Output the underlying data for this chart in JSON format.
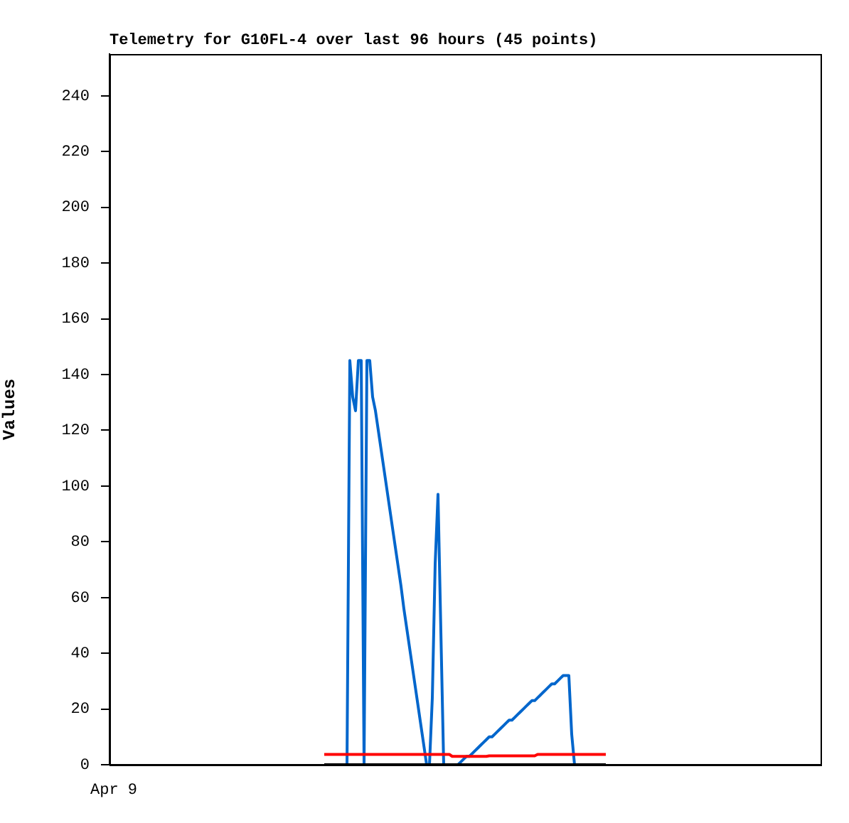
{
  "chart_data": {
    "type": "line",
    "title": "Telemetry for G10FL-4 over last 96 hours (45 points)",
    "ylabel": "Values",
    "annotations": [
      "Apr 9"
    ],
    "ylim": [
      0,
      255
    ],
    "yticks": [
      0,
      20,
      40,
      60,
      80,
      100,
      120,
      140,
      160,
      180,
      200,
      220,
      240
    ],
    "grid": false,
    "legend": false,
    "marker": "none",
    "line_style": "solid",
    "categories": [
      null,
      null,
      null,
      null,
      null,
      null,
      null,
      null,
      null,
      null,
      null,
      null,
      null,
      null,
      null,
      null,
      null,
      null,
      null,
      null,
      null,
      null,
      null,
      null,
      null,
      null,
      null,
      null,
      null,
      null,
      null,
      null,
      null,
      null,
      null,
      null,
      null,
      null,
      null,
      null,
      null,
      null,
      null,
      null,
      null,
      null,
      null,
      null,
      null,
      null,
      null,
      null,
      null,
      null,
      null,
      null,
      null,
      null,
      null,
      null,
      null,
      null,
      null,
      null,
      null,
      null,
      null,
      null,
      null,
      null,
      null,
      null,
      null,
      null,
      null,
      null,
      null,
      null,
      null,
      null,
      null,
      null,
      null,
      null,
      null,
      null,
      null,
      null,
      null,
      null,
      null,
      null,
      null,
      null,
      null,
      null,
      null,
      null,
      null,
      null,
      null,
      null,
      null,
      null,
      null,
      null,
      null,
      null,
      null,
      null,
      null,
      null,
      null,
      null,
      null,
      null,
      null,
      null,
      null,
      null,
      null,
      null,
      null,
      null,
      null,
      null,
      null,
      null,
      null,
      null,
      null,
      null,
      null,
      null,
      null,
      null,
      null,
      null,
      null,
      null,
      null,
      null,
      null,
      null,
      null,
      null,
      null,
      null,
      null,
      null,
      null,
      null,
      null,
      null,
      null,
      null,
      null,
      null,
      null,
      null,
      null,
      null,
      null,
      null,
      null,
      null,
      null,
      null,
      null,
      null,
      null,
      null,
      null,
      null,
      null,
      null,
      null,
      null,
      null,
      null,
      null,
      null,
      null,
      null,
      null,
      null,
      null,
      null,
      null,
      null,
      null,
      null,
      null,
      null,
      null,
      null,
      null,
      null,
      null,
      null,
      null,
      null,
      null,
      null,
      null,
      null,
      null,
      null,
      null,
      null,
      null,
      null,
      null,
      null,
      null,
      null,
      null,
      null,
      null,
      null,
      null,
      null,
      null,
      null,
      null,
      null,
      null,
      null,
      null,
      null,
      null,
      null,
      null,
      null,
      null,
      null,
      null,
      null,
      null,
      null,
      null,
      null,
      null,
      null,
      null,
      null,
      null,
      null,
      null,
      null
    ],
    "series": [
      {
        "color": "#000000",
        "values": [
          null,
          null,
          null,
          null,
          null,
          null,
          null,
          null,
          null,
          null,
          null,
          null,
          null,
          null,
          null,
          null,
          null,
          null,
          null,
          null,
          null,
          null,
          null,
          null,
          null,
          null,
          null,
          null,
          null,
          null,
          null,
          null,
          null,
          null,
          null,
          null,
          null,
          null,
          null,
          null,
          null,
          null,
          null,
          null,
          null,
          null,
          null,
          null,
          null,
          null,
          null,
          null,
          null,
          null,
          null,
          null,
          null,
          null,
          null,
          null,
          null,
          null,
          null,
          null,
          null,
          null,
          null,
          null,
          null,
          null,
          null,
          null,
          null,
          null,
          null,
          0,
          0,
          0,
          0,
          0,
          0,
          0,
          0,
          0,
          0,
          0,
          0,
          0,
          0,
          0,
          0,
          0,
          0,
          0,
          0,
          0,
          0,
          0,
          0,
          0,
          0,
          0,
          0,
          0,
          0,
          0,
          0,
          0,
          0,
          0,
          0,
          0,
          0,
          0,
          0,
          0,
          0,
          0,
          0,
          0,
          0,
          0,
          0,
          0,
          0,
          0,
          0,
          0,
          0,
          0,
          0,
          0,
          0,
          0,
          0,
          0,
          0,
          0,
          0,
          0,
          0,
          0,
          0,
          0,
          0,
          0,
          0,
          0,
          0,
          0,
          0,
          0,
          0,
          0,
          0,
          0,
          0,
          0,
          0,
          0,
          0,
          0,
          0,
          0,
          0,
          0,
          0,
          0,
          0,
          0,
          0,
          0,
          0,
          0,
          0,
          null,
          null,
          null,
          null,
          null,
          null,
          null,
          null,
          null,
          null,
          null,
          null,
          null,
          null,
          null,
          null,
          null,
          null,
          null,
          null,
          null,
          null,
          null,
          null,
          null,
          null,
          null,
          null,
          null,
          null,
          null,
          null,
          null,
          null,
          null,
          null,
          null,
          null,
          null,
          null,
          null,
          null,
          null,
          null,
          null,
          null,
          null,
          null,
          null,
          null,
          null,
          null,
          null,
          null,
          null,
          null,
          null,
          null,
          null,
          null,
          null,
          null,
          null,
          null,
          null,
          null,
          null,
          null,
          null,
          null,
          null,
          null,
          null,
          null,
          null
        ]
      },
      {
        "color": "#ff0000",
        "values": [
          null,
          null,
          null,
          null,
          null,
          null,
          null,
          null,
          null,
          null,
          null,
          null,
          null,
          null,
          null,
          null,
          null,
          null,
          null,
          null,
          null,
          null,
          null,
          null,
          null,
          null,
          null,
          null,
          null,
          null,
          null,
          null,
          null,
          null,
          null,
          null,
          null,
          null,
          null,
          null,
          null,
          null,
          null,
          null,
          null,
          null,
          null,
          null,
          null,
          null,
          null,
          null,
          null,
          null,
          null,
          null,
          null,
          null,
          null,
          null,
          null,
          null,
          null,
          null,
          null,
          null,
          null,
          null,
          null,
          null,
          null,
          null,
          null,
          null,
          null,
          3.7,
          3.7,
          3.7,
          3.7,
          3.7,
          3.7,
          3.7,
          3.7,
          3.7,
          3.7,
          3.7,
          3.7,
          3.7,
          3.7,
          3.7,
          3.7,
          3.7,
          3.7,
          3.7,
          3.7,
          3.7,
          3.7,
          3.7,
          3.7,
          3.7,
          3.7,
          3.7,
          3.7,
          3.7,
          3.7,
          3.7,
          3.7,
          3.7,
          3.7,
          3.7,
          3.7,
          3.7,
          3.7,
          3.7,
          3.7,
          3.7,
          3.7,
          3.7,
          3.7,
          3.7,
          3,
          3,
          3,
          3,
          3,
          3,
          3,
          3,
          3,
          3,
          3,
          3,
          3,
          3.2,
          3.2,
          3.2,
          3.2,
          3.2,
          3.2,
          3.2,
          3.2,
          3.2,
          3.2,
          3.2,
          3.2,
          3.2,
          3.2,
          3.2,
          3.2,
          3.2,
          3.7,
          3.7,
          3.7,
          3.7,
          3.7,
          3.7,
          3.7,
          3.7,
          3.7,
          3.7,
          3.7,
          3.7,
          3.7,
          3.7,
          3.7,
          3.7,
          3.7,
          3.7,
          3.7,
          3.7,
          3.7,
          3.7,
          3.7,
          3.7,
          3.7,
          null,
          null,
          null,
          null,
          null,
          null,
          null,
          null,
          null,
          null,
          null,
          null,
          null,
          null,
          null,
          null,
          null,
          null,
          null,
          null,
          null,
          null,
          null,
          null,
          null,
          null,
          null,
          null,
          null,
          null,
          null,
          null,
          null,
          null,
          null,
          null,
          null,
          null,
          null,
          null,
          null,
          null,
          null,
          null,
          null,
          null,
          null,
          null,
          null,
          null,
          null,
          null,
          null,
          null,
          null,
          null,
          null,
          null,
          null,
          null,
          null,
          null,
          null,
          null,
          null,
          null,
          null,
          null,
          null,
          null,
          null,
          null,
          null,
          null,
          null
        ]
      },
      {
        "color": "#0066cc",
        "values": [
          null,
          null,
          null,
          null,
          null,
          null,
          null,
          null,
          null,
          null,
          null,
          null,
          null,
          null,
          null,
          null,
          null,
          null,
          null,
          null,
          null,
          null,
          null,
          null,
          null,
          null,
          null,
          null,
          null,
          null,
          null,
          null,
          null,
          null,
          null,
          null,
          null,
          null,
          null,
          null,
          null,
          null,
          null,
          null,
          null,
          null,
          null,
          null,
          null,
          null,
          null,
          null,
          null,
          null,
          null,
          null,
          null,
          null,
          null,
          null,
          null,
          null,
          null,
          null,
          null,
          null,
          null,
          null,
          null,
          null,
          null,
          null,
          null,
          null,
          null,
          null,
          null,
          null,
          null,
          null,
          null,
          null,
          null,
          0,
          145,
          132,
          127,
          145,
          145,
          0,
          145,
          145,
          132,
          127,
          120,
          113,
          106,
          99,
          92,
          85,
          78,
          71,
          64,
          56,
          49,
          42,
          35,
          28,
          21,
          14,
          7,
          0,
          0,
          24,
          72,
          97,
          48,
          0,
          0,
          0,
          0,
          0,
          0,
          1,
          2,
          3,
          3,
          4,
          5,
          6,
          7,
          8,
          9,
          10,
          10,
          11,
          12,
          13,
          14,
          15,
          16,
          16,
          17,
          18,
          19,
          20,
          21,
          22,
          23,
          23,
          24,
          25,
          26,
          27,
          28,
          29,
          29,
          30,
          31,
          32,
          32,
          32,
          11,
          0,
          null,
          null,
          null,
          null,
          null,
          null,
          null,
          null,
          null,
          null,
          null,
          null,
          null,
          null,
          null,
          null,
          null,
          null,
          null,
          null,
          null,
          null,
          null,
          null,
          null,
          null,
          null,
          null,
          null,
          null,
          null,
          null,
          null,
          null,
          null,
          null,
          null,
          null,
          null,
          null,
          null,
          null,
          null,
          null,
          null,
          null,
          null,
          null,
          null,
          null,
          null,
          null,
          null,
          null,
          null,
          null,
          null,
          null,
          null,
          null,
          null,
          null,
          null,
          null,
          null,
          null,
          null,
          null,
          null,
          null,
          null,
          null,
          null,
          null,
          null,
          null,
          null,
          null,
          null,
          null,
          null,
          null,
          null,
          null,
          null,
          null
        ]
      }
    ]
  }
}
